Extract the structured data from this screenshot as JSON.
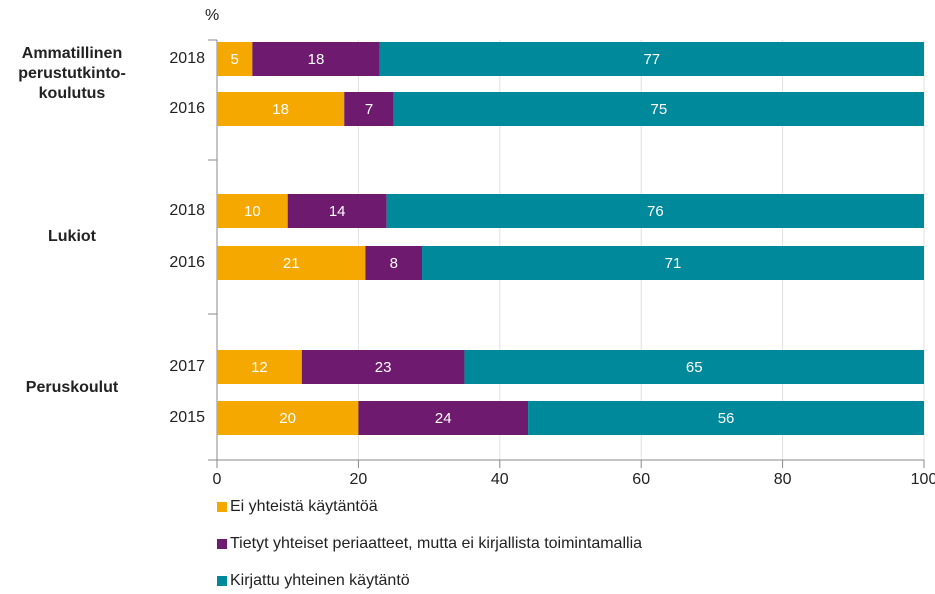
{
  "chart_data": {
    "type": "bar",
    "orientation": "horizontal",
    "stacked": true,
    "axis_label": "%",
    "groups": [
      [
        "Ammatillinen",
        "perustutkinto-",
        "koulutus"
      ],
      [
        "Lukiot"
      ],
      [
        "Peruskoulut"
      ]
    ],
    "categories": [
      "2018",
      "2016",
      "2018",
      "2016",
      "2017",
      "2015"
    ],
    "series": [
      {
        "name": "Ei yhteistä käytäntöä",
        "color": "#f5a800",
        "values": [
          5,
          18,
          10,
          21,
          12,
          20
        ]
      },
      {
        "name": "Tietyt yhteiset periaatteet, mutta ei kirjallista toimintamallia",
        "color": "#6e1a6e",
        "values": [
          18,
          7,
          14,
          8,
          23,
          24
        ]
      },
      {
        "name": "Kirjattu yhteinen käytäntö",
        "color": "#00899a",
        "values": [
          77,
          75,
          76,
          71,
          65,
          56
        ]
      }
    ],
    "xlim": [
      0,
      100
    ],
    "xticks": [
      0,
      20,
      40,
      60,
      80,
      100
    ],
    "grid": true,
    "legend": "bottom"
  }
}
